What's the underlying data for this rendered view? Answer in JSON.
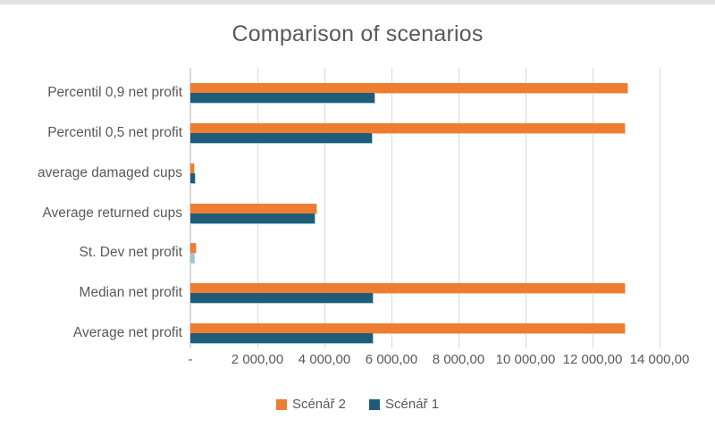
{
  "window": {
    "top_border_color": "#e3e3e5"
  },
  "chart_data": {
    "type": "bar",
    "orientation": "horizontal",
    "title": "Comparison of scenarios",
    "title_color": "#595959",
    "text_color": "#595959",
    "gridline_color": "#d9d9d9",
    "grid": true,
    "legend_position": "bottom",
    "categories": [
      "Percentil 0,9 net profit",
      "Percentil 0,5 net profit",
      "average damaged cups",
      "Average returned cups",
      "St. Dev net profit",
      "Median net profit",
      "Average net profit"
    ],
    "series": [
      {
        "name": "Scénář 2",
        "color": "#ed7d31",
        "edge_color": "#f5c9a6",
        "values": [
          13050,
          12950,
          110,
          3750,
          150,
          12950,
          12950
        ]
      },
      {
        "name": "Scénář 1",
        "color": "#1f5c78",
        "edge_color": "#a9ccdc",
        "values": [
          5500,
          5400,
          120,
          3700,
          100,
          5450,
          5450
        ],
        "point_color_overrides": {
          "4": "#9dc3d6"
        }
      }
    ],
    "xlim": [
      0,
      14000
    ],
    "x_ticks": [
      {
        "value": 0,
        "label": "-"
      },
      {
        "value": 2000,
        "label": "2 000,00"
      },
      {
        "value": 4000,
        "label": "4 000,00"
      },
      {
        "value": 6000,
        "label": "6 000,00"
      },
      {
        "value": 8000,
        "label": "8 000,00"
      },
      {
        "value": 10000,
        "label": "10 000,00"
      },
      {
        "value": 12000,
        "label": "12 000,00"
      },
      {
        "value": 14000,
        "label": "14 000,00"
      }
    ]
  }
}
